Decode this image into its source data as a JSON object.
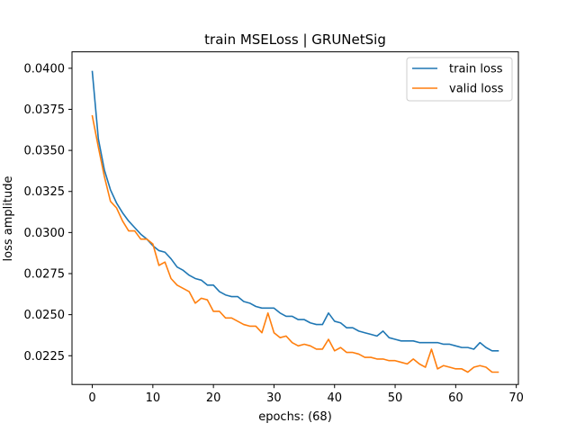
{
  "chart_data": {
    "type": "line",
    "title": "train MSELoss | GRUNetSig",
    "xlabel": "epochs: (68)",
    "ylabel": "loss amplitude",
    "xlim": [
      -3.35,
      70.35
    ],
    "ylim": [
      0.02075,
      0.041
    ],
    "xticks": [
      0,
      10,
      20,
      30,
      40,
      50,
      60,
      70
    ],
    "xtick_labels": [
      "0",
      "10",
      "20",
      "30",
      "40",
      "50",
      "60",
      "70"
    ],
    "yticks": [
      0.0225,
      0.025,
      0.0275,
      0.03,
      0.0325,
      0.035,
      0.0375,
      0.04
    ],
    "ytick_labels": [
      "0.0225",
      "0.0250",
      "0.0275",
      "0.0300",
      "0.0325",
      "0.0350",
      "0.0375",
      "0.0400"
    ],
    "grid": false,
    "legend_position": "top-right",
    "x": [
      0,
      1,
      2,
      3,
      4,
      5,
      6,
      7,
      8,
      9,
      10,
      11,
      12,
      13,
      14,
      15,
      16,
      17,
      18,
      19,
      20,
      21,
      22,
      23,
      24,
      25,
      26,
      27,
      28,
      29,
      30,
      31,
      32,
      33,
      34,
      35,
      36,
      37,
      38,
      39,
      40,
      41,
      42,
      43,
      44,
      45,
      46,
      47,
      48,
      49,
      50,
      51,
      52,
      53,
      54,
      55,
      56,
      57,
      58,
      59,
      60,
      61,
      62,
      63,
      64,
      65,
      66,
      67
    ],
    "series": [
      {
        "name": "train loss",
        "color": "#1f77b4",
        "values": [
          0.0398,
          0.0357,
          0.0338,
          0.0326,
          0.0318,
          0.0312,
          0.0307,
          0.0303,
          0.0299,
          0.0296,
          0.0292,
          0.0289,
          0.0288,
          0.0284,
          0.0279,
          0.0277,
          0.0274,
          0.0272,
          0.0271,
          0.0268,
          0.0268,
          0.0264,
          0.0262,
          0.0261,
          0.0261,
          0.0258,
          0.0257,
          0.0255,
          0.0254,
          0.0254,
          0.0254,
          0.0251,
          0.0249,
          0.0249,
          0.0247,
          0.0247,
          0.0245,
          0.0244,
          0.0244,
          0.0251,
          0.0246,
          0.0245,
          0.0242,
          0.0242,
          0.024,
          0.0239,
          0.0238,
          0.0237,
          0.024,
          0.0236,
          0.0235,
          0.0234,
          0.0234,
          0.0234,
          0.0233,
          0.0233,
          0.0233,
          0.0233,
          0.0232,
          0.0232,
          0.0231,
          0.023,
          0.023,
          0.0229,
          0.0233,
          0.023,
          0.0228,
          0.0228
        ]
      },
      {
        "name": "valid loss",
        "color": "#ff7f0e",
        "values": [
          0.0371,
          0.0352,
          0.0334,
          0.0319,
          0.0315,
          0.0307,
          0.0301,
          0.0301,
          0.0296,
          0.0296,
          0.0293,
          0.028,
          0.0282,
          0.0272,
          0.0268,
          0.0266,
          0.0264,
          0.0257,
          0.026,
          0.0259,
          0.0252,
          0.0252,
          0.0248,
          0.0248,
          0.0246,
          0.0244,
          0.0243,
          0.0243,
          0.0239,
          0.0251,
          0.0239,
          0.0236,
          0.0237,
          0.0233,
          0.0231,
          0.0232,
          0.0231,
          0.0229,
          0.0229,
          0.0235,
          0.0228,
          0.023,
          0.0227,
          0.0227,
          0.0226,
          0.0224,
          0.0224,
          0.0223,
          0.0223,
          0.0222,
          0.0222,
          0.0221,
          0.022,
          0.0223,
          0.022,
          0.0218,
          0.0229,
          0.0217,
          0.0219,
          0.0218,
          0.0217,
          0.0217,
          0.0215,
          0.0218,
          0.0219,
          0.0218,
          0.0215,
          0.0215
        ]
      }
    ]
  }
}
